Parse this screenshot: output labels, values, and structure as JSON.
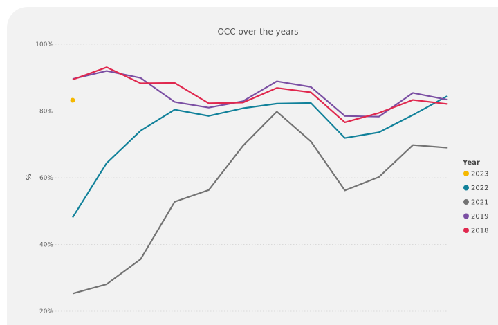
{
  "chart_data": {
    "type": "line",
    "title": "OCC over the years",
    "xlabel": "",
    "ylabel": "%",
    "ylim": [
      20,
      100
    ],
    "y_ticks": [
      "20%",
      "40%",
      "60%",
      "80%",
      "100%"
    ],
    "grid": true,
    "legend_position": "right",
    "legend_title": "Year",
    "x": [
      1,
      2,
      3,
      4,
      5,
      6,
      7,
      8,
      9,
      10,
      11,
      12
    ],
    "series": [
      {
        "name": "2023",
        "color": "#F5B800",
        "values": [
          83.2,
          null,
          null,
          null,
          null,
          null,
          null,
          null,
          null,
          null,
          null,
          null
        ]
      },
      {
        "name": "2022",
        "color": "#11819A",
        "values": [
          48.1,
          64.4,
          74.1,
          80.4,
          78.5,
          80.8,
          82.2,
          82.4,
          71.9,
          73.6,
          78.8,
          84.4
        ]
      },
      {
        "name": "2021",
        "color": "#737373",
        "values": [
          25.3,
          28.1,
          35.6,
          52.8,
          56.3,
          69.5,
          79.8,
          70.9,
          56.2,
          60.2,
          69.8,
          69.0
        ]
      },
      {
        "name": "2019",
        "color": "#7B4FA3",
        "values": [
          89.6,
          92.0,
          89.9,
          82.7,
          81.0,
          82.9,
          88.9,
          87.2,
          78.5,
          78.3,
          85.4,
          83.4
        ]
      },
      {
        "name": "2018",
        "color": "#E0284E",
        "values": [
          89.4,
          93.1,
          88.3,
          88.4,
          82.3,
          82.5,
          86.9,
          85.6,
          76.6,
          79.4,
          83.3,
          82.1
        ]
      }
    ]
  }
}
